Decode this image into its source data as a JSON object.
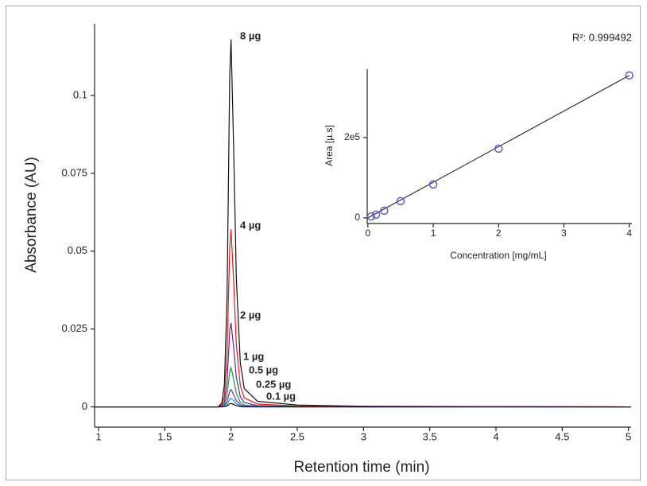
{
  "chart_data": [
    {
      "type": "line",
      "x_label": "Retention time (min)",
      "y_label": "Absorbance (AU)",
      "x": [
        0.97,
        1.9,
        1.93,
        1.95,
        1.97,
        1.99,
        2.0,
        2.02,
        2.04,
        2.07,
        2.1,
        2.2,
        2.5,
        3,
        5.02
      ],
      "series": [
        {
          "name": "8 µg",
          "color": "#111111",
          "values": [
            0,
            0,
            0.0012,
            0.0071,
            0.0354,
            0.1062,
            0.118,
            0.0826,
            0.0413,
            0.0142,
            0.0059,
            0.0018,
            0.0006,
            0.0002,
            0
          ]
        },
        {
          "name": "4 µg",
          "color": "#e3191c",
          "values": [
            0,
            0,
            0.0006,
            0.0034,
            0.0171,
            0.0513,
            0.057,
            0.0399,
            0.02,
            0.0068,
            0.0029,
            0.0009,
            0.0003,
            0.0001,
            0
          ]
        },
        {
          "name": "2 µg",
          "color": "#5b2d8e",
          "values": [
            0,
            0,
            0.0003,
            0.0016,
            0.0081,
            0.0243,
            0.027,
            0.0189,
            0.0095,
            0.0032,
            0.0014,
            0.0004,
            0.0001,
            0.0001,
            0
          ]
        },
        {
          "name": "1 µg",
          "color": "#1a9641",
          "values": [
            0,
            0,
            0.0001,
            0.0008,
            0.0038,
            0.0113,
            0.0126,
            0.0088,
            0.0044,
            0.0015,
            0.0006,
            0.0002,
            0.0001,
            0,
            0
          ]
        },
        {
          "name": "0.5 µg",
          "color": "#7b2a9a",
          "values": [
            0,
            0,
            0.0001,
            0.0003,
            0.0017,
            0.005,
            0.0056,
            0.0039,
            0.002,
            0.0007,
            0.0003,
            0.0001,
            0,
            0,
            0
          ]
        },
        {
          "name": "0.25 µg",
          "color": "#1f9bd7",
          "values": [
            0,
            0,
            0,
            0.0002,
            0.0008,
            0.0025,
            0.0028,
            0.002,
            0.001,
            0.0003,
            0.0001,
            0,
            0,
            0,
            0
          ]
        },
        {
          "name": "0.1 µg",
          "color": "#111111",
          "values": [
            0,
            0,
            0,
            0.0001,
            0.0003,
            0.001,
            0.0011,
            0.0008,
            0.0004,
            0.0001,
            0,
            0,
            0,
            0,
            0
          ]
        }
      ],
      "xlim": [
        0.97,
        5.02
      ],
      "xticks": [
        1,
        1.5,
        2,
        2.5,
        3,
        3.5,
        4,
        4.5,
        5
      ],
      "ylim": [
        -0.0065,
        0.123
      ],
      "yticks": [
        0,
        0.025,
        0.05,
        0.075,
        0.1
      ]
    },
    {
      "type": "scatter",
      "x_label": "Concentration [mg/mL]",
      "y_label": "Area [µ.s]",
      "annotation": "R²: 0.999492",
      "series": [
        {
          "color": "#5a5fc0",
          "x": [
            0.05,
            0.125,
            0.25,
            0.5,
            1,
            2,
            4
          ],
          "values": [
            3500,
            8000,
            17800,
            41600,
            83200,
            172300,
            354500
          ]
        }
      ],
      "fit": {
        "color": "#333333",
        "x": [
          0,
          4
        ],
        "values": [
          0,
          354500
        ]
      },
      "xlim": [
        -0.01,
        4.04
      ],
      "xticks": [
        0,
        1,
        2,
        3,
        4
      ],
      "ylim": [
        -14000,
        370000
      ],
      "yticks": [
        0,
        {
          "value": 200000,
          "label": "2e5"
        }
      ]
    }
  ]
}
